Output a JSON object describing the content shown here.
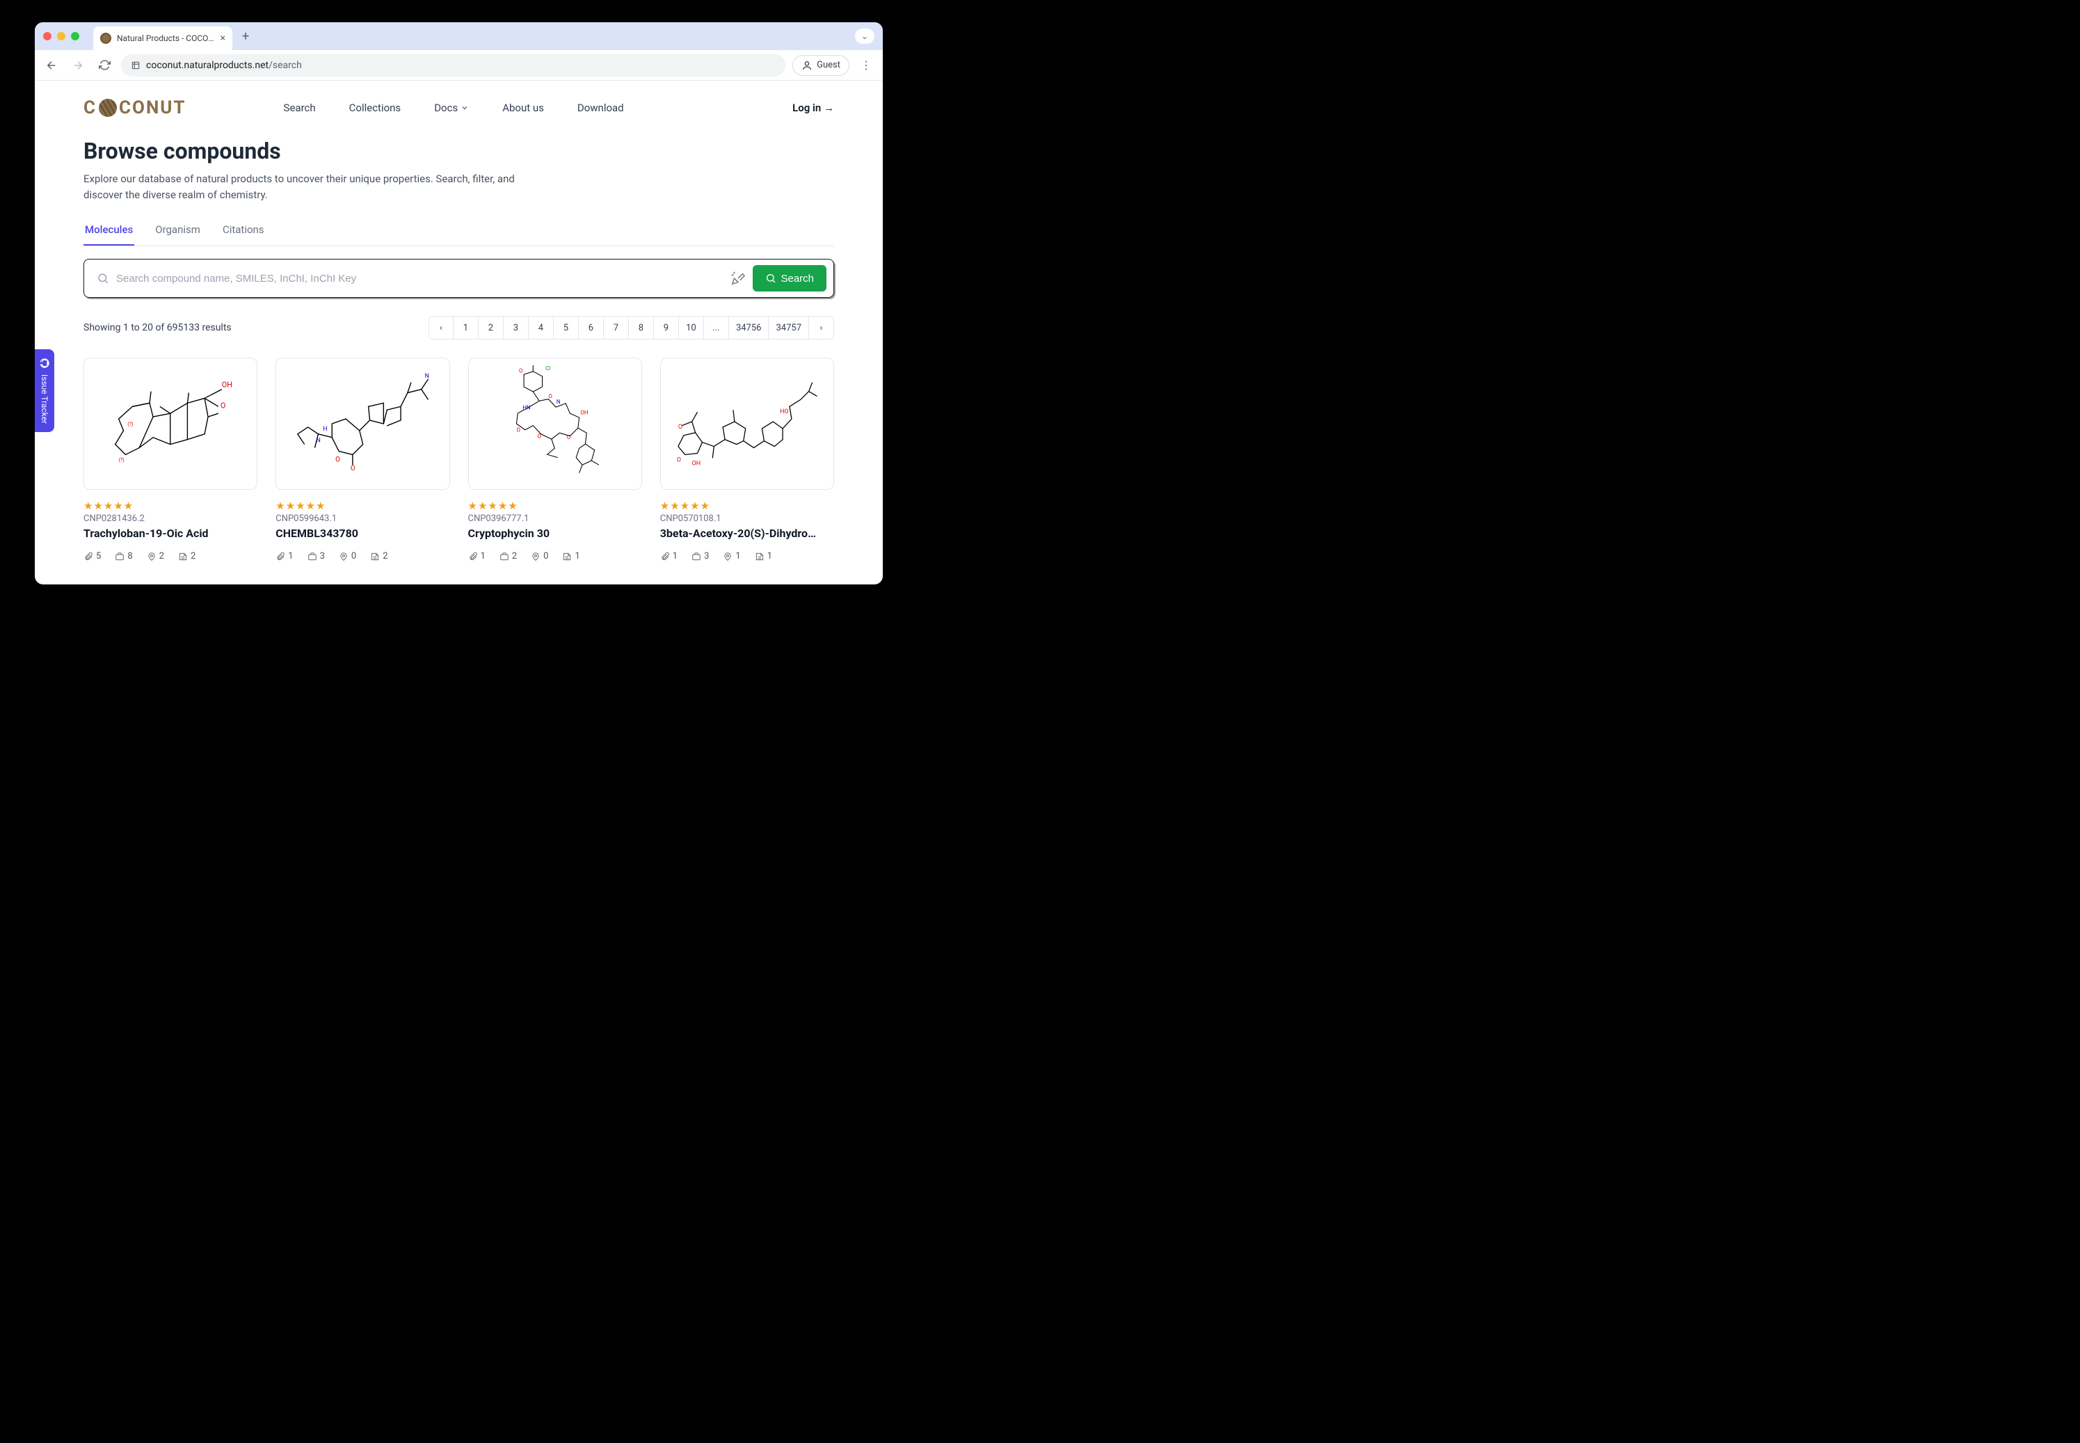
{
  "browser": {
    "tab_title": "Natural Products - COCONUT",
    "url_host": "coconut.naturalproducts.net",
    "url_path": "/search",
    "guest_label": "Guest"
  },
  "site": {
    "logo_text_left": "C",
    "logo_text_right": "CONUT",
    "nav": [
      "Search",
      "Collections",
      "Docs",
      "About us",
      "Download"
    ],
    "login": "Log in →"
  },
  "page": {
    "title": "Browse compounds",
    "subtitle": "Explore our database of natural products to uncover their unique properties. Search, filter, and discover the diverse realm of chemistry.",
    "tabs": [
      "Molecules",
      "Organism",
      "Citations"
    ],
    "active_tab_index": 0,
    "search_placeholder": "Search compound name, SMILES, InChI, InChI Key",
    "search_button": "Search",
    "results_text": "Showing 1 to 20 of 695133 results",
    "pager": [
      "‹",
      "1",
      "2",
      "3",
      "4",
      "5",
      "6",
      "7",
      "8",
      "9",
      "10",
      "...",
      "34756",
      "34757",
      "›"
    ]
  },
  "issue_tracker": "Issue Tracker",
  "cards": [
    {
      "id": "CNP0281436.2",
      "name": "Trachyloban-19-Oic Acid",
      "stars": 5,
      "metrics": {
        "attach": "5",
        "collections": "8",
        "locations": "2",
        "refs": "2"
      }
    },
    {
      "id": "CNP0599643.1",
      "name": "CHEMBL343780",
      "stars": 5,
      "metrics": {
        "attach": "1",
        "collections": "3",
        "locations": "0",
        "refs": "2"
      }
    },
    {
      "id": "CNP0396777.1",
      "name": "Cryptophycin 30",
      "stars": 5,
      "metrics": {
        "attach": "1",
        "collections": "2",
        "locations": "0",
        "refs": "1"
      }
    },
    {
      "id": "CNP0570108.1",
      "name": "3beta-Acetoxy-20(S)-Dihydro…",
      "stars": 5,
      "metrics": {
        "attach": "1",
        "collections": "3",
        "locations": "1",
        "refs": "1"
      }
    }
  ],
  "colors": {
    "accent": "#4f46e5",
    "search_btn": "#16a34a",
    "star": "#f59e0b",
    "logo": "#8b6f47"
  }
}
